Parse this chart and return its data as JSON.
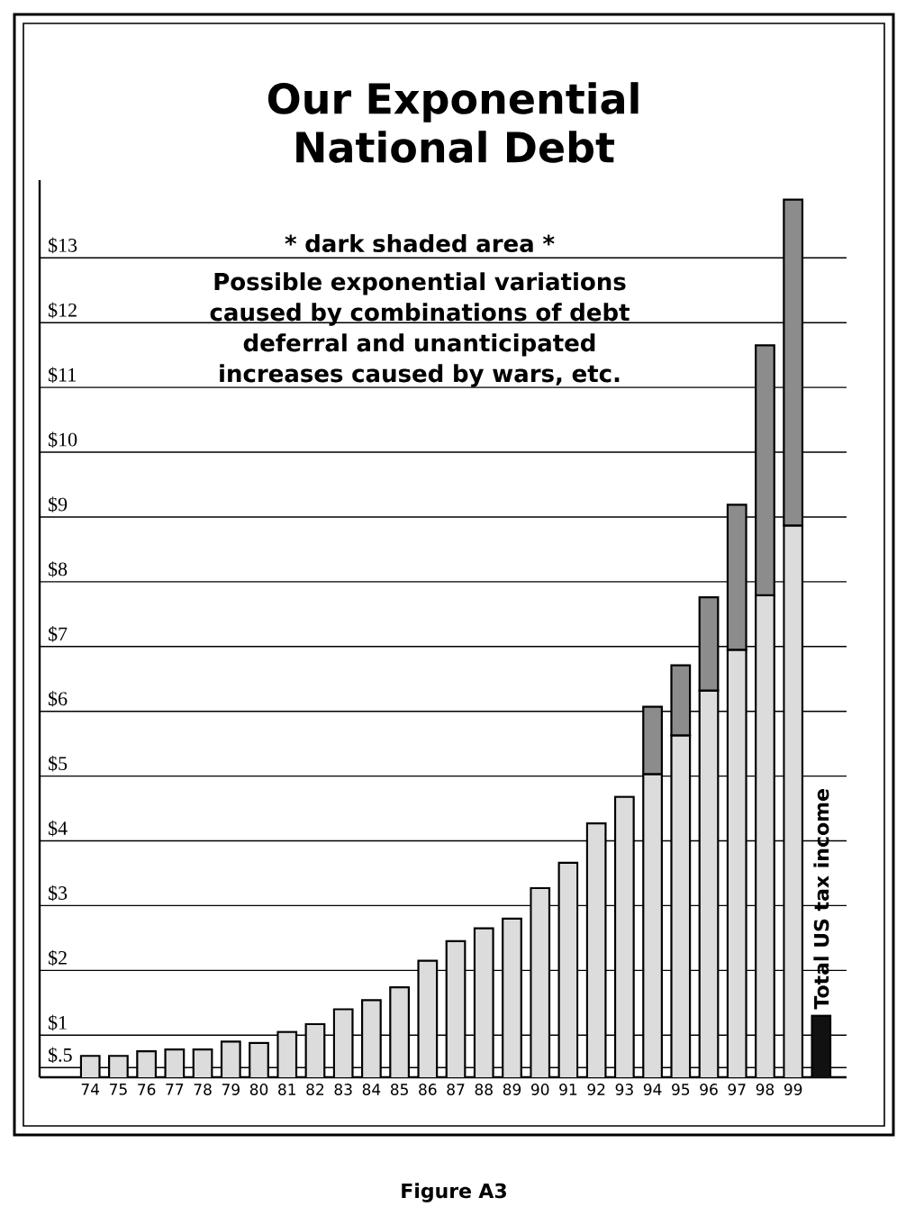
{
  "chart_data": {
    "type": "bar",
    "stacked": true,
    "title": "Our Exponential National Debt",
    "categories": [
      "74",
      "75",
      "76",
      "77",
      "78",
      "79",
      "80",
      "81",
      "82",
      "83",
      "84",
      "85",
      "86",
      "87",
      "88",
      "89",
      "90",
      "91",
      "92",
      "93",
      "94",
      "95",
      "96",
      "97",
      "98",
      "99",
      "Total US tax income"
    ],
    "series": [
      {
        "colors": [
          "#dcdcdc",
          "#dcdcdc",
          "#dcdcdc",
          "#dcdcdc",
          "#dcdcdc",
          "#dcdcdc",
          "#dcdcdc",
          "#dcdcdc",
          "#dcdcdc",
          "#dcdcdc",
          "#dcdcdc",
          "#dcdcdc",
          "#dcdcdc",
          "#dcdcdc",
          "#dcdcdc",
          "#dcdcdc",
          "#dcdcdc",
          "#dcdcdc",
          "#dcdcdc",
          "#dcdcdc",
          "#dcdcdc",
          "#dcdcdc",
          "#dcdcdc",
          "#dcdcdc",
          "#dcdcdc",
          "#dcdcdc",
          "#111111"
        ],
        "values": [
          0.68,
          0.68,
          0.75,
          0.78,
          0.78,
          0.9,
          0.88,
          1.05,
          1.17,
          1.4,
          1.54,
          1.74,
          2.15,
          2.45,
          2.65,
          2.8,
          3.27,
          3.66,
          4.27,
          4.68,
          5.03,
          5.63,
          6.32,
          6.95,
          7.79,
          8.87,
          1.3
        ]
      },
      {
        "color": "#8c8c8c",
        "values": [
          null,
          null,
          null,
          null,
          null,
          null,
          null,
          null,
          null,
          null,
          null,
          null,
          null,
          null,
          null,
          null,
          null,
          null,
          null,
          null,
          1.04,
          1.08,
          1.44,
          2.24,
          3.86,
          5.03,
          null
        ]
      }
    ],
    "ylim": [
      0.35,
      14.2
    ],
    "yticks": [
      {
        "value": 0.5,
        "label": "$.5"
      },
      {
        "value": 1,
        "label": "$1"
      },
      {
        "value": 2,
        "label": "$2"
      },
      {
        "value": 3,
        "label": "$3"
      },
      {
        "value": 4,
        "label": "$4"
      },
      {
        "value": 5,
        "label": "$5"
      },
      {
        "value": 6,
        "label": "$6"
      },
      {
        "value": 7,
        "label": "$7"
      },
      {
        "value": 8,
        "label": "$8"
      },
      {
        "value": 9,
        "label": "$9"
      },
      {
        "value": 10,
        "label": "$10"
      },
      {
        "value": 11,
        "label": "$11"
      },
      {
        "value": 12,
        "label": "$12"
      },
      {
        "value": 13,
        "label": "$13"
      }
    ],
    "grid": "y",
    "annotations": [
      "* dark shaded area *",
      "Possible exponential variations caused by combinations of debt deferral and unanticipated increases caused by wars, etc.",
      "Figure A3"
    ]
  }
}
